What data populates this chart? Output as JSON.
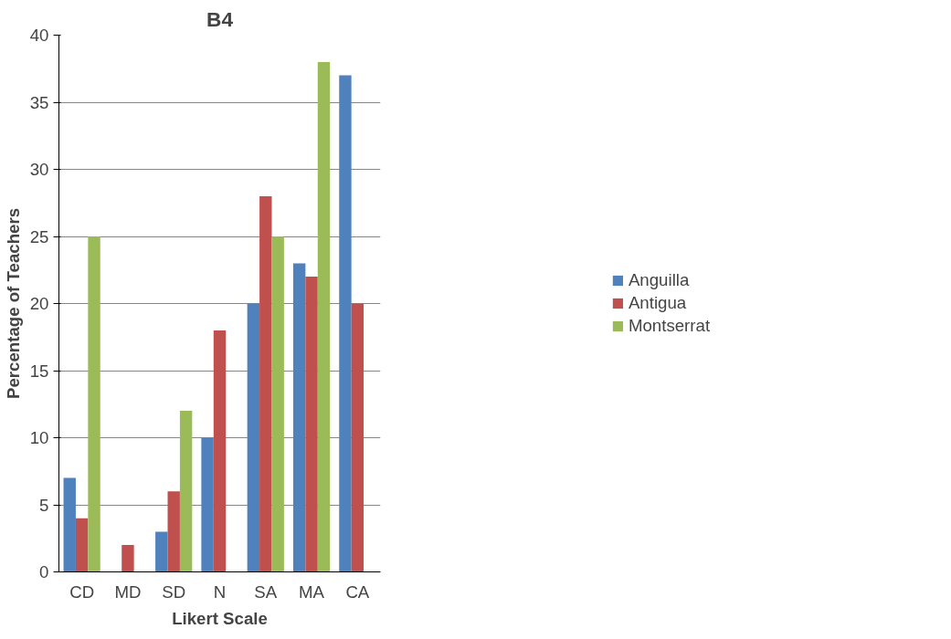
{
  "chart_data": {
    "type": "bar",
    "title": "B4",
    "xlabel": "Likert Scale",
    "ylabel": "Percentage of Teachers",
    "categories": [
      "CD",
      "MD",
      "SD",
      "N",
      "SA",
      "MA",
      "CA"
    ],
    "series": [
      {
        "name": "Anguilla",
        "color": "#4f81bd",
        "values": [
          7,
          0,
          3,
          10,
          20,
          23,
          37
        ]
      },
      {
        "name": "Antigua",
        "color": "#c0504d",
        "values": [
          4,
          2,
          6,
          18,
          28,
          22,
          20
        ]
      },
      {
        "name": "Montserrat",
        "color": "#9bbb59",
        "values": [
          25,
          0,
          12,
          0,
          25,
          38,
          0
        ]
      }
    ],
    "ylim": [
      0,
      40
    ],
    "yticks": [
      0,
      5,
      10,
      15,
      20,
      25,
      30,
      35,
      40
    ],
    "grid": "y",
    "legend": "right"
  }
}
